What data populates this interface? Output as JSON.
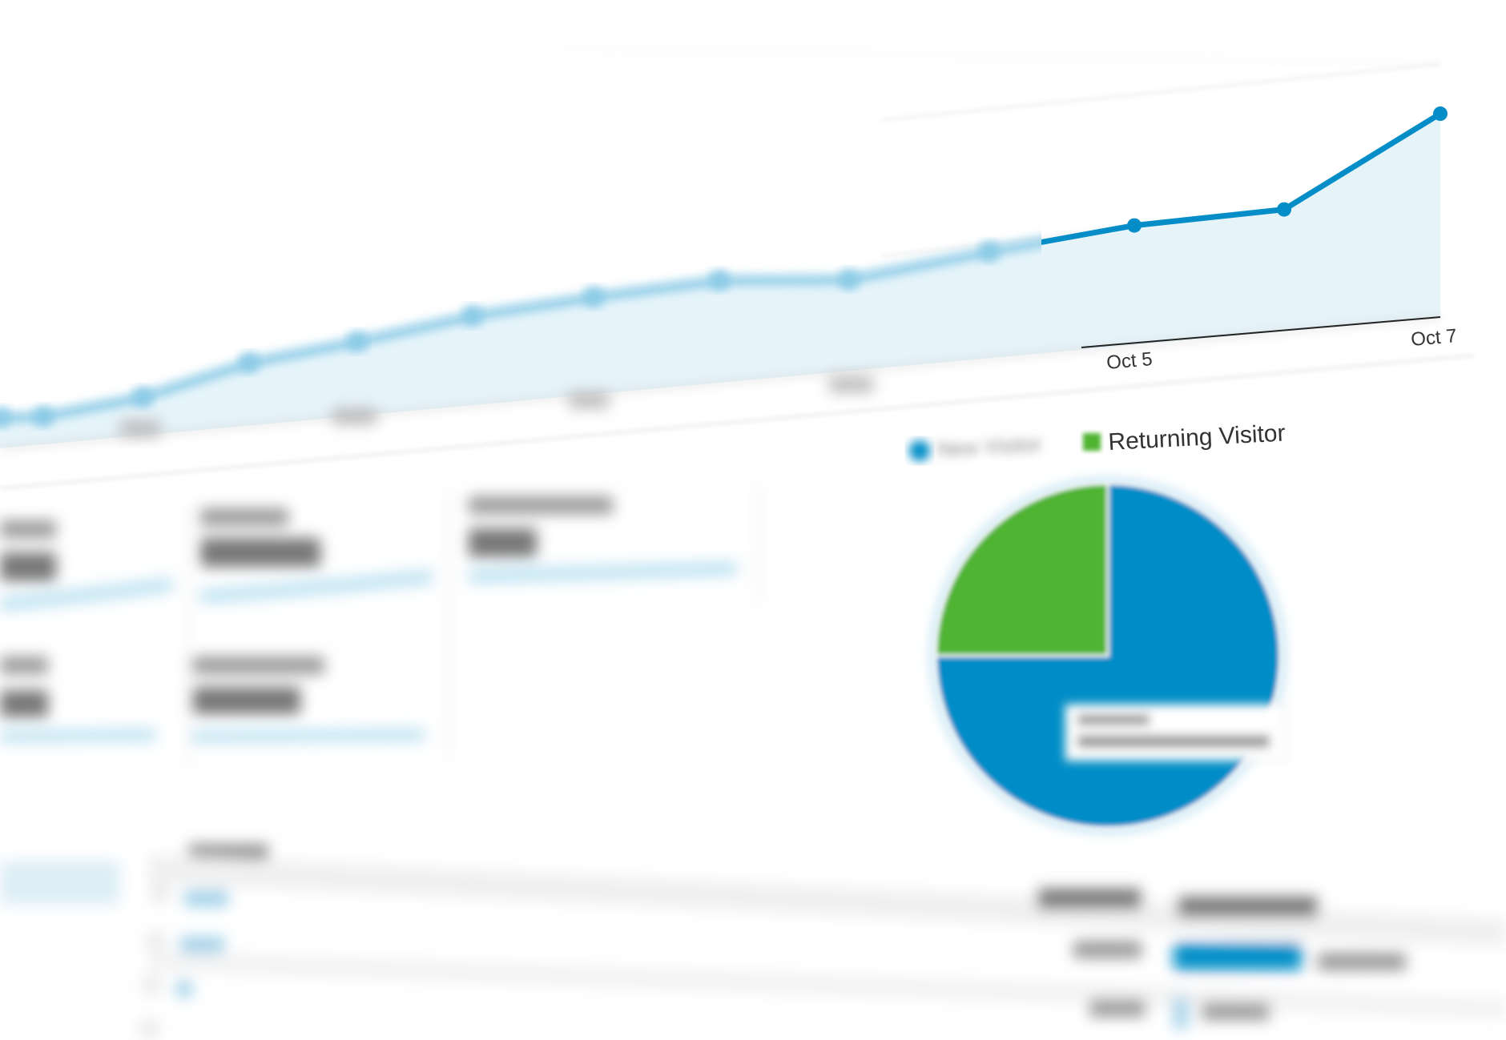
{
  "chart_data": [
    {
      "type": "area",
      "x": [
        "",
        "",
        "",
        "",
        "",
        "",
        "",
        "",
        "",
        "",
        "Oct 5",
        "",
        "Oct 7"
      ],
      "tick_labels": [
        "Oct 5",
        "Oct 7"
      ],
      "values": [
        70,
        62,
        80,
        125,
        140,
        160,
        165,
        165,
        140,
        155,
        165,
        160,
        254
      ],
      "series_color": "#058dc7",
      "fill_color": "#e6f4fa",
      "grid": true,
      "title": "",
      "xlabel": "",
      "ylabel": ""
    },
    {
      "type": "pie",
      "legend": [
        "New Visitor",
        "Returning Visitor"
      ],
      "values": [
        75,
        25
      ],
      "colors": [
        "#058dc7",
        "#50b432"
      ],
      "legend_placement": "top"
    }
  ],
  "colors": {
    "accent": "#058dc7",
    "green": "#50b432",
    "fill": "#e6f4fa"
  }
}
